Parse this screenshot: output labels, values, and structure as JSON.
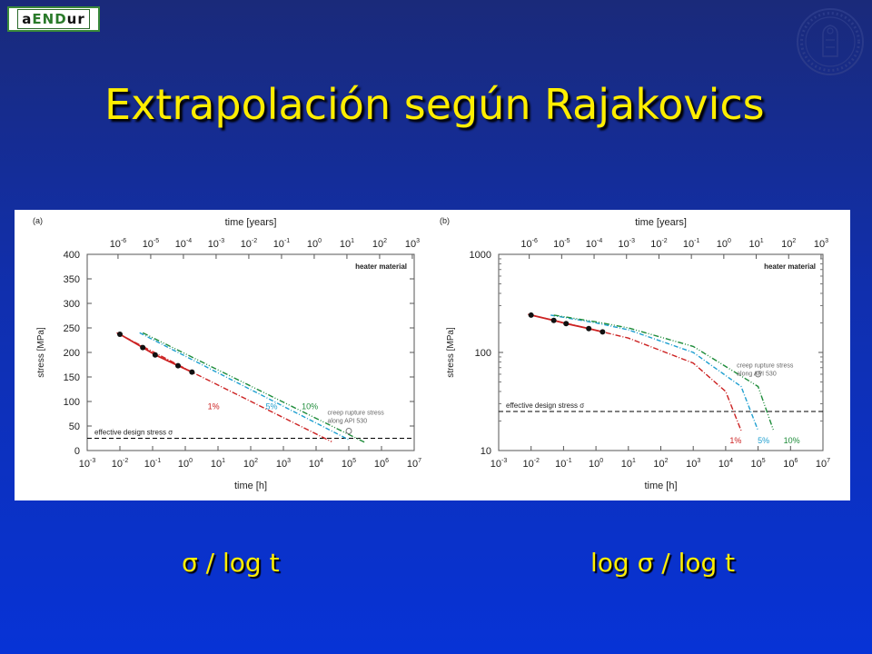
{
  "header": {
    "logo_text": {
      "pre": "a",
      "mid": "END",
      "post": "ur"
    }
  },
  "slide": {
    "title": "Extrapolación según Rajakovics",
    "caption_left": "σ / log t",
    "caption_right": "log σ / log t"
  },
  "colors": {
    "title": "#ffee00",
    "line_1pct": "#cc2222",
    "line_5pct": "#1e9fd0",
    "line_10pct": "#1e8c3a",
    "design_line": "#000000"
  },
  "chart_data": [
    {
      "panel": "(a)",
      "type": "line",
      "y_scale": "linear",
      "x_scale": "log",
      "xlabel": "time [h]",
      "x2label": "time [years]",
      "ylabel": "stress [MPa]",
      "xlim": [
        0.001,
        10000000
      ],
      "ylim": [
        0,
        400
      ],
      "x_ticks": [
        "10-3",
        "10-2",
        "10-1",
        "100",
        "101",
        "102",
        "103",
        "104",
        "105",
        "106",
        "107"
      ],
      "x2_ticks": [
        "10-6",
        "10-5",
        "10-4",
        "10-3",
        "10-2",
        "10-1",
        "100",
        "101",
        "102",
        "103"
      ],
      "y_ticks": [
        "0",
        "50",
        "100",
        "150",
        "200",
        "250",
        "300",
        "350",
        "400"
      ],
      "annotation_material": "heater material",
      "design_label": "effective design stress σ",
      "design_value": 25,
      "api_note": [
        "creep rupture stress",
        "along API 530"
      ],
      "data_points": [
        {
          "x": 0.01,
          "y": 237
        },
        {
          "x": 0.05,
          "y": 210
        },
        {
          "x": 0.12,
          "y": 195
        },
        {
          "x": 0.6,
          "y": 173
        },
        {
          "x": 1.6,
          "y": 160
        }
      ],
      "series": [
        {
          "name": "1%",
          "x": [
            0.008,
            1.6,
            30000
          ],
          "y": [
            240,
            160,
            18
          ]
        },
        {
          "name": "5%",
          "x": [
            0.04,
            100000
          ],
          "y": [
            240,
            22
          ]
        },
        {
          "name": "10%",
          "x": [
            0.05,
            300000
          ],
          "y": [
            240,
            17
          ]
        }
      ]
    },
    {
      "panel": "(b)",
      "type": "line",
      "y_scale": "log",
      "x_scale": "log",
      "xlabel": "time [h]",
      "x2label": "time [years]",
      "ylabel": "stress [MPa]",
      "xlim": [
        0.001,
        10000000
      ],
      "ylim": [
        10,
        1000
      ],
      "x_ticks": [
        "10-3",
        "10-2",
        "10-1",
        "100",
        "101",
        "102",
        "103",
        "104",
        "105",
        "106",
        "107"
      ],
      "x2_ticks": [
        "10-6",
        "10-5",
        "10-4",
        "10-3",
        "10-2",
        "10-1",
        "100",
        "101",
        "102",
        "103"
      ],
      "y_ticks": [
        "10",
        "100",
        "1000"
      ],
      "annotation_material": "heater material",
      "design_label": "effective design stress σ",
      "design_value": 25,
      "api_note": [
        "creep rupture stress",
        "along API 530"
      ],
      "data_points": [
        {
          "x": 0.01,
          "y": 240
        },
        {
          "x": 0.05,
          "y": 212
        },
        {
          "x": 0.12,
          "y": 197
        },
        {
          "x": 0.6,
          "y": 175
        },
        {
          "x": 1.6,
          "y": 162
        }
      ],
      "series": [
        {
          "name": "1%",
          "x": [
            0.008,
            1.6,
            10,
            1000,
            10000,
            30000
          ],
          "y": [
            245,
            162,
            140,
            78,
            40,
            16
          ]
        },
        {
          "name": "5%",
          "x": [
            0.04,
            1,
            10,
            1000,
            30000,
            100000
          ],
          "y": [
            240,
            200,
            170,
            100,
            45,
            16
          ]
        },
        {
          "name": "10%",
          "x": [
            0.05,
            1,
            10,
            1000,
            100000,
            300000
          ],
          "y": [
            240,
            205,
            178,
            115,
            45,
            16
          ]
        }
      ]
    }
  ]
}
